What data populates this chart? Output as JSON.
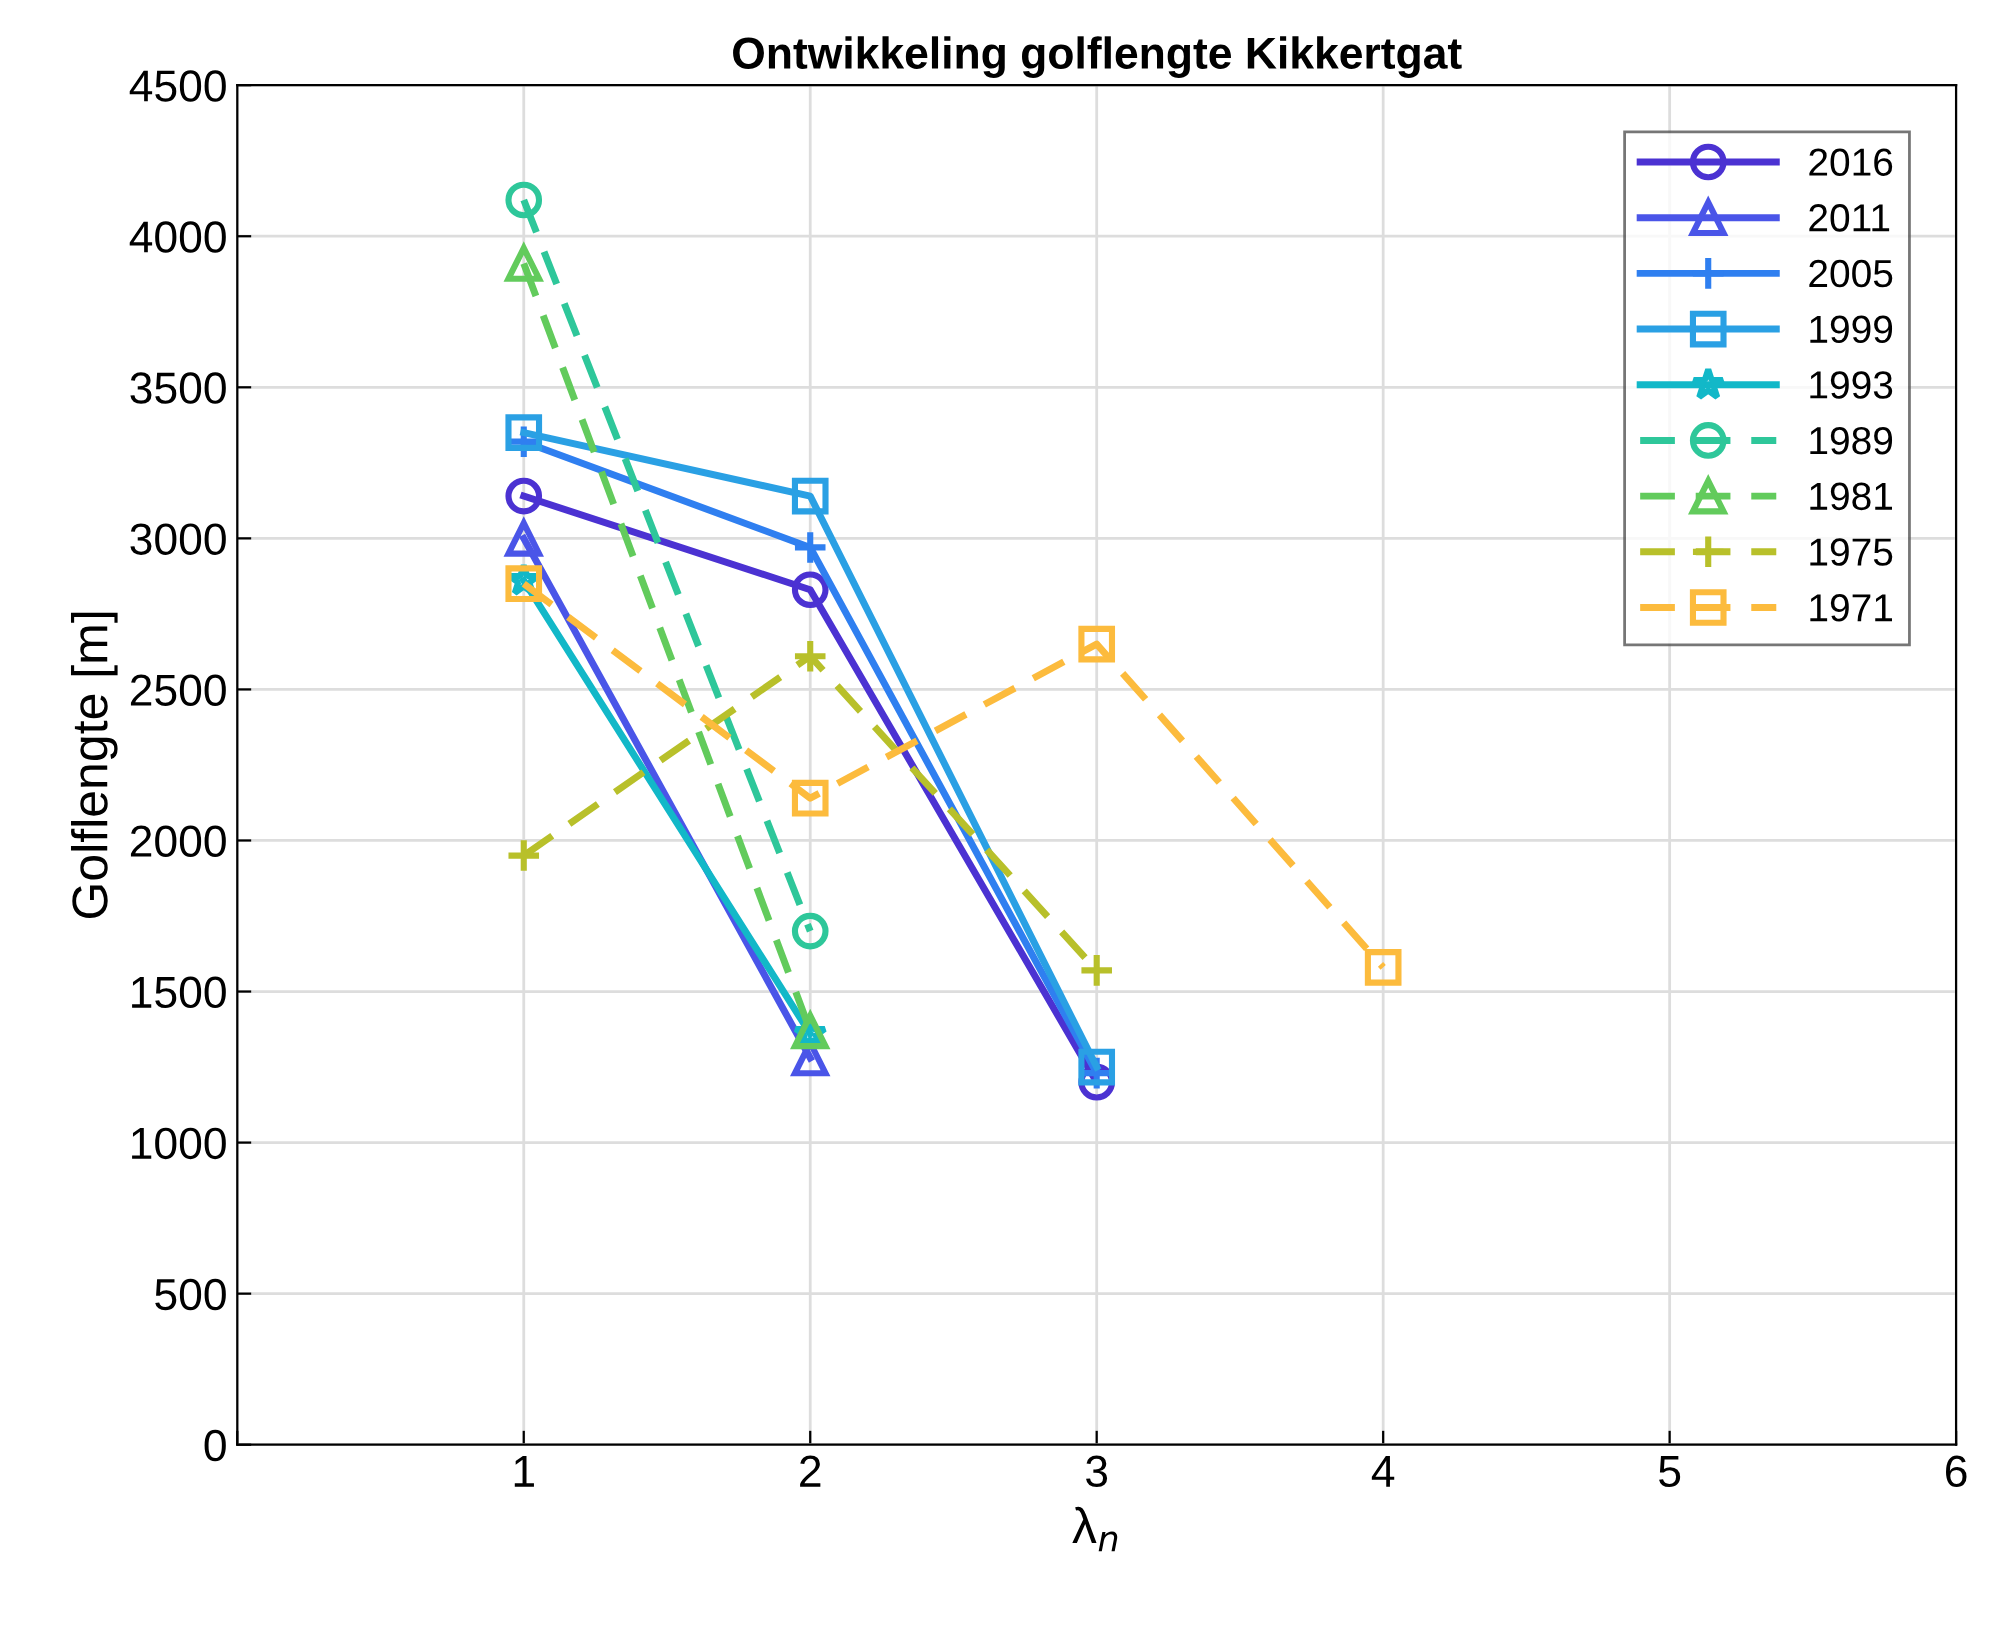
{
  "chart_data": {
    "type": "line",
    "title": "Ontwikkeling golflengte Kikkertgat",
    "xlabel": "λ$_{n}$",
    "ylabel": "Golflengte [m]",
    "xlim": [
      0,
      6
    ],
    "xticks": [
      {
        "value": 0,
        "label": null
      },
      1,
      2,
      3,
      4,
      5,
      6
    ],
    "ylim": [
      0,
      4500
    ],
    "yticks": [
      0,
      500,
      1000,
      1500,
      2000,
      2500,
      3000,
      3500,
      4000,
      4500
    ],
    "grid": true,
    "legend": "top right",
    "series": [
      {
        "name": "2016",
        "color": "#4b32d2",
        "x": [
          1,
          2,
          3
        ],
        "values": [
          3140,
          2830,
          1200
        ],
        "marker": "circle",
        "line_style": "solid"
      },
      {
        "name": "2011",
        "color": "#4a55e8",
        "x": [
          1,
          2
        ],
        "values": [
          3000,
          1280
        ],
        "marker": "triangle",
        "line_style": "solid"
      },
      {
        "name": "2005",
        "color": "#2f7ff0",
        "x": [
          1,
          2,
          3
        ],
        "values": [
          3320,
          2970,
          1230
        ],
        "marker": "cross",
        "line_style": "solid"
      },
      {
        "name": "1999",
        "color": "#2aa0e4",
        "x": [
          1,
          2,
          3
        ],
        "values": [
          3350,
          3140,
          1250
        ],
        "marker": "square",
        "line_style": "solid"
      },
      {
        "name": "1993",
        "color": "#12b8c8",
        "x": [
          1,
          2
        ],
        "values": [
          2860,
          1360
        ],
        "marker": "star",
        "line_style": "solid"
      },
      {
        "name": "1989",
        "color": "#2ec79a",
        "x": [
          1,
          2
        ],
        "values": [
          4120,
          1700
        ],
        "marker": "circle",
        "line_style": "dashed"
      },
      {
        "name": "1981",
        "color": "#62cb5c",
        "x": [
          1,
          2
        ],
        "values": [
          3910,
          1370
        ],
        "marker": "triangle",
        "line_style": "dashed"
      },
      {
        "name": "1975",
        "color": "#b8c02a",
        "x": [
          1,
          2,
          3
        ],
        "values": [
          1950,
          2610,
          1570
        ],
        "marker": "cross",
        "line_style": "dashed"
      },
      {
        "name": "1971",
        "color": "#fcbb3d",
        "x": [
          1,
          2,
          3,
          4
        ],
        "values": [
          2850,
          2140,
          2650,
          1580
        ],
        "marker": "square",
        "line_style": "dashed"
      }
    ]
  }
}
